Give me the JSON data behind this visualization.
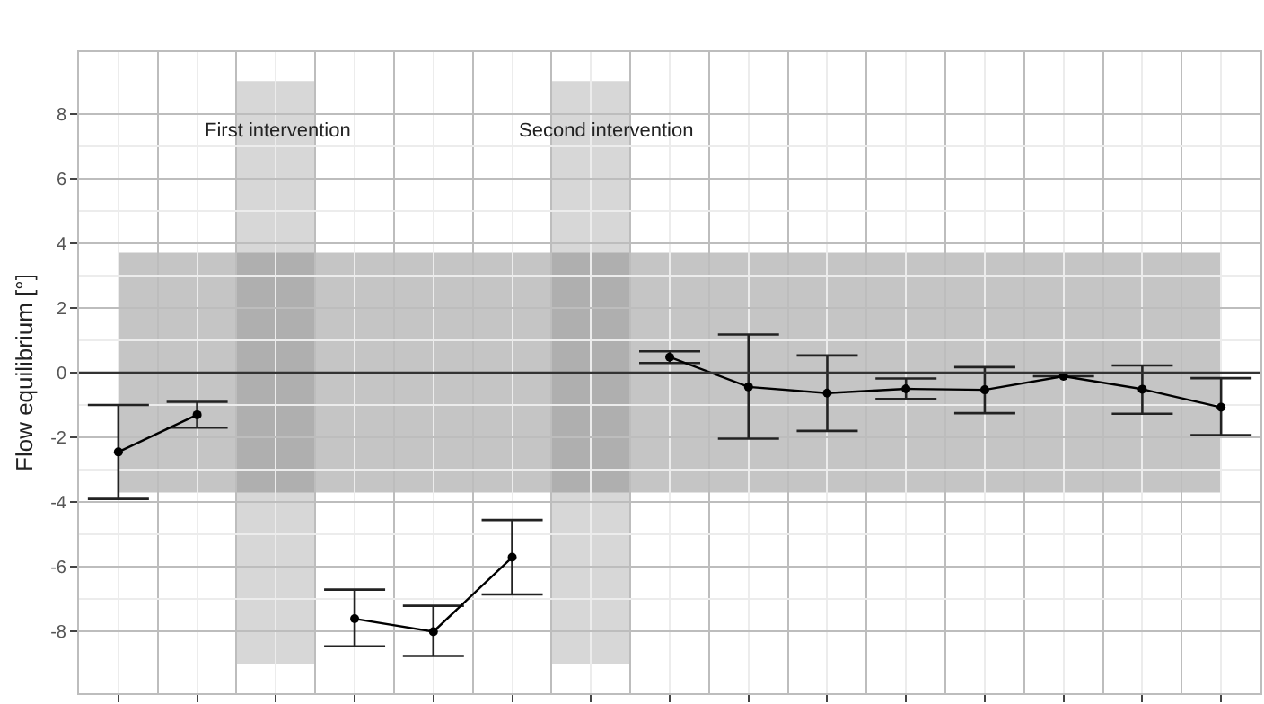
{
  "chart_data": {
    "type": "line",
    "ylabel": "Flow equilibrium [°]",
    "categories": [
      null,
      null,
      null,
      null,
      null,
      null,
      null,
      null,
      null,
      null,
      null,
      null,
      null,
      null,
      null
    ],
    "series": [
      {
        "color": "#000000",
        "values": [
          -2.45,
          -1.3,
          null,
          -7.6,
          -8.0,
          -5.7,
          null,
          0.48,
          -0.44,
          -0.63,
          -0.5,
          -0.53,
          -0.11,
          -0.51,
          -1.07
        ],
        "errors": [
          [
            -3.9,
            -1.0
          ],
          [
            -1.7,
            -0.9
          ],
          null,
          [
            -8.45,
            -6.7
          ],
          [
            -8.75,
            -7.2
          ],
          [
            -6.85,
            -4.55
          ],
          null,
          [
            0.3,
            0.66
          ],
          [
            -2.04,
            1.18
          ],
          [
            -1.8,
            0.53
          ],
          [
            -0.81,
            -0.18
          ],
          [
            -1.25,
            0.17
          ],
          null,
          [
            -1.27,
            0.22
          ],
          [
            -1.93,
            -0.17
          ]
        ]
      }
    ],
    "ylim": [
      -9.9,
      9.9
    ],
    "yticks": [
      -8,
      -6,
      -4,
      -2,
      0,
      2,
      4,
      6,
      8
    ],
    "tick_labels": "y",
    "grid": true,
    "marker": "circle",
    "line_style": "solid",
    "ref_lines": [
      {
        "axis": "y",
        "value": 0,
        "color": "#333333"
      }
    ],
    "annotations": [
      "First intervention",
      "Second intervention"
    ],
    "bands": [
      {
        "axis": "y",
        "from": -3.7,
        "to": 3.7,
        "color": "#7f7f7f"
      }
    ]
  }
}
